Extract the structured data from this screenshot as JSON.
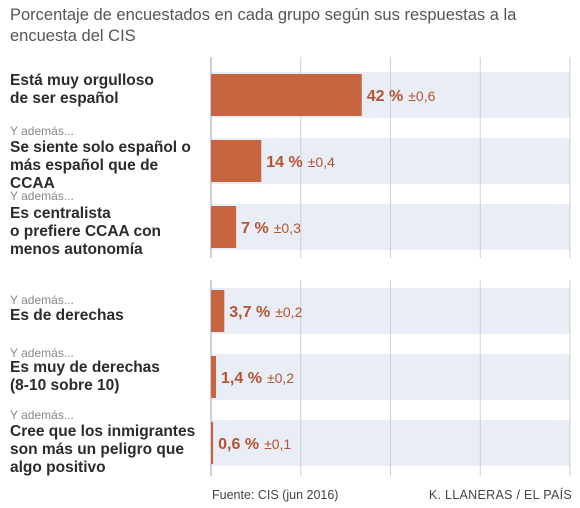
{
  "chart_data": {
    "type": "bar",
    "orientation": "horizontal",
    "subtitle": "Porcentaje de encuestados en cada grupo según sus respuestas a la encuesta del CIS",
    "xlim": [
      0,
      100
    ],
    "grid": true,
    "colors": {
      "bar": "#c8643f",
      "band": "#e9edf6",
      "value_text": "#b5542f",
      "grid": "#c9cfdb"
    },
    "rows": [
      {
        "prefix": "",
        "label": "Está muy orgulloso de ser español",
        "label_lines": [
          "Está muy orgulloso",
          "de ser español"
        ],
        "value": 42,
        "value_label": "42 %",
        "error_label": "±0,6"
      },
      {
        "prefix": "Y además...",
        "label": "Se siente solo español o más español que de CCAA",
        "label_lines": [
          "Se siente solo español o",
          "más español que de CCAA"
        ],
        "value": 14,
        "value_label": "14 %",
        "error_label": "±0,4"
      },
      {
        "prefix": "Y además...",
        "label": "Es centralista o prefiere CCAA con menos autonomía",
        "label_lines": [
          "Es centralista",
          "o prefiere CCAA con",
          "menos autonomía"
        ],
        "value": 7,
        "value_label": "7 %",
        "error_label": "±0,3"
      },
      {
        "prefix": "Y además...",
        "label": "Es de derechas",
        "label_lines": [
          "Es de derechas"
        ],
        "value": 3.7,
        "value_label": "3,7 %",
        "error_label": "±0,2"
      },
      {
        "prefix": "Y además...",
        "label": "Es muy de derechas (8-10 sobre 10)",
        "label_lines": [
          "Es muy de derechas",
          "(8-10 sobre 10)"
        ],
        "value": 1.4,
        "value_label": "1,4 %",
        "error_label": "±0,2"
      },
      {
        "prefix": "Y además...",
        "label": "Cree que los inmigrantes son más un peligro que algo positivo",
        "label_lines": [
          "Cree que los inmigrantes",
          "son más un peligro que",
          "algo positivo"
        ],
        "value": 0.6,
        "value_label": "0,6 %",
        "error_label": "±0,1"
      }
    ]
  },
  "footer": {
    "source": "Fuente: CIS (jun 2016)",
    "credit": "K. LLANERAS / EL PAÍS"
  }
}
